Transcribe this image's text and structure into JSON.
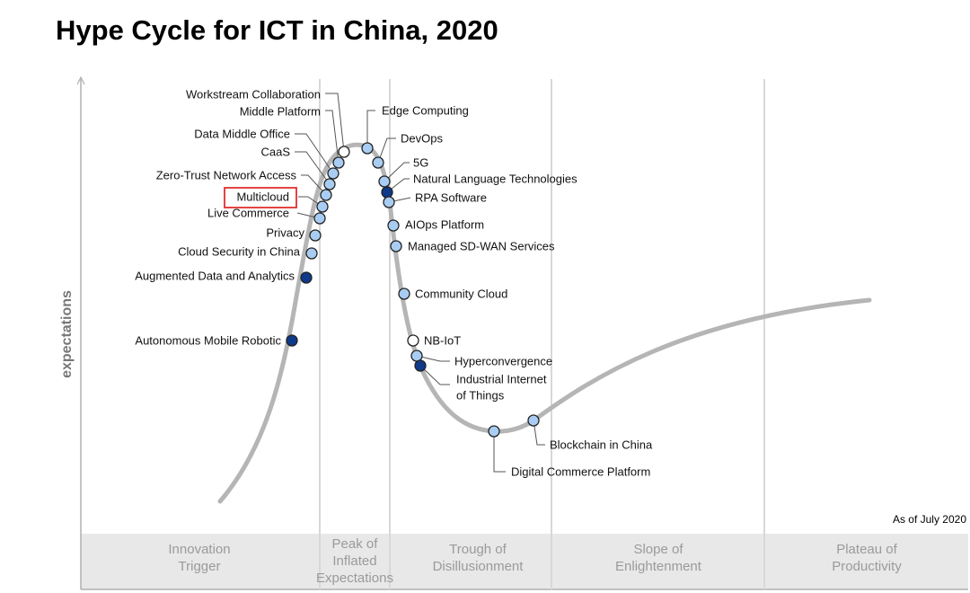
{
  "title": "Hype Cycle for ICT in China, 2020",
  "y_axis_label": "expectations",
  "as_of": "As of July 2020",
  "colors": {
    "curve": "#b5b5b5",
    "phase_band": "#e8e8e8",
    "divider": "#d8d8d8",
    "dot_light_blue": "#a9cdf2",
    "dot_dark_blue": "#0f3a8a",
    "dot_white": "#ffffff",
    "highlight_box": "#e03030"
  },
  "phases": [
    {
      "label": "Innovation\nTrigger"
    },
    {
      "label": "Peak of\nInflated\nExpectations"
    },
    {
      "label": "Trough of\nDisillusionment"
    },
    {
      "label": "Slope of\nEnlightenment"
    },
    {
      "label": "Plateau of\nProductivity"
    }
  ],
  "technologies": [
    {
      "name": "Workstream Collaboration",
      "phase": "Peak of Inflated Expectations",
      "marker": "white"
    },
    {
      "name": "Middle Platform",
      "phase": "Peak of Inflated Expectations",
      "marker": "light-blue"
    },
    {
      "name": "Data Middle Office",
      "phase": "Peak of Inflated Expectations",
      "marker": "light-blue"
    },
    {
      "name": "CaaS",
      "phase": "Peak of Inflated Expectations",
      "marker": "light-blue"
    },
    {
      "name": "Zero-Trust Network Access",
      "phase": "Peak of Inflated Expectations",
      "marker": "light-blue"
    },
    {
      "name": "Multicloud",
      "phase": "Peak of Inflated Expectations",
      "marker": "light-blue",
      "highlighted": true
    },
    {
      "name": "Live Commerce",
      "phase": "Peak of Inflated Expectations",
      "marker": "light-blue"
    },
    {
      "name": "Privacy",
      "phase": "Innovation Trigger",
      "marker": "light-blue"
    },
    {
      "name": "Cloud Security in China",
      "phase": "Innovation Trigger",
      "marker": "light-blue"
    },
    {
      "name": "Augmented Data and Analytics",
      "phase": "Innovation Trigger",
      "marker": "dark-blue"
    },
    {
      "name": "Autonomous Mobile Robotic",
      "phase": "Innovation Trigger",
      "marker": "dark-blue"
    },
    {
      "name": "Edge Computing",
      "phase": "Peak of Inflated Expectations",
      "marker": "light-blue"
    },
    {
      "name": "DevOps",
      "phase": "Peak of Inflated Expectations",
      "marker": "light-blue"
    },
    {
      "name": "5G",
      "phase": "Peak of Inflated Expectations",
      "marker": "light-blue"
    },
    {
      "name": "Natural Language Technologies",
      "phase": "Peak of Inflated Expectations",
      "marker": "dark-blue"
    },
    {
      "name": "RPA Software",
      "phase": "Peak of Inflated Expectations",
      "marker": "light-blue"
    },
    {
      "name": "AIOps Platform",
      "phase": "Trough of Disillusionment",
      "marker": "light-blue"
    },
    {
      "name": "Managed SD-WAN Services",
      "phase": "Trough of Disillusionment",
      "marker": "light-blue"
    },
    {
      "name": "Community Cloud",
      "phase": "Trough of Disillusionment",
      "marker": "light-blue"
    },
    {
      "name": "NB-IoT",
      "phase": "Trough of Disillusionment",
      "marker": "white"
    },
    {
      "name": "Hyperconvergence",
      "phase": "Trough of Disillusionment",
      "marker": "light-blue"
    },
    {
      "name": "Industrial Internet of Things",
      "phase": "Trough of Disillusionment",
      "marker": "dark-blue",
      "label_lines": [
        "Industrial Internet",
        "of Things"
      ]
    },
    {
      "name": "Digital Commerce Platform",
      "phase": "Trough of Disillusionment",
      "marker": "light-blue"
    },
    {
      "name": "Blockchain in China",
      "phase": "Trough of Disillusionment",
      "marker": "light-blue"
    }
  ]
}
